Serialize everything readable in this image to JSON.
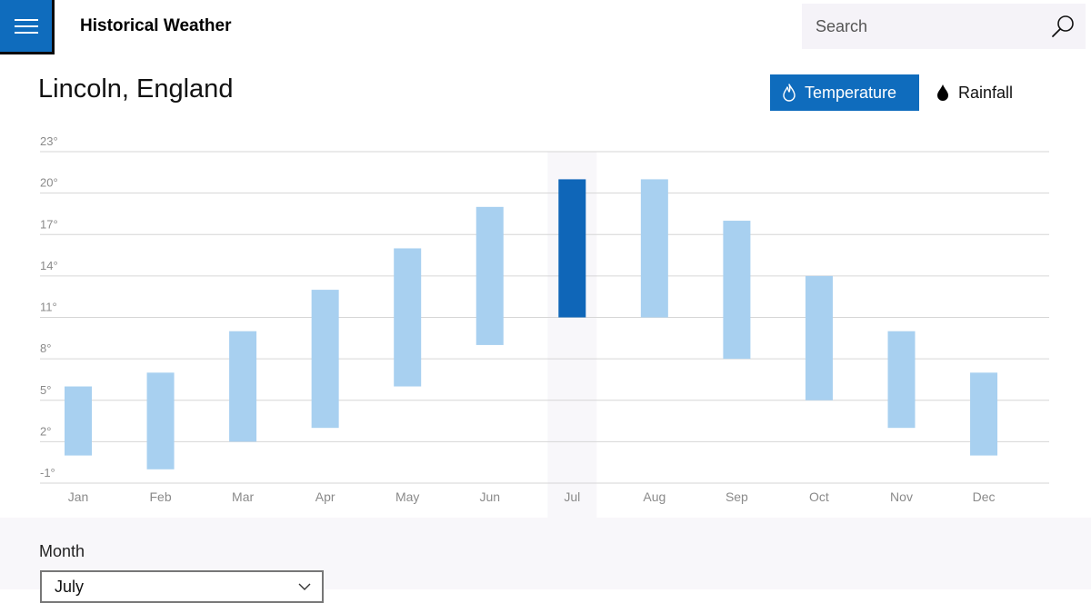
{
  "header": {
    "menu_icon": "hamburger-icon",
    "title": "Historical Weather",
    "search_placeholder": "Search",
    "search_icon": "search-icon"
  },
  "location": "Lincoln, England",
  "toggles": {
    "temperature_label": "Temperature",
    "rainfall_label": "Rainfall",
    "active": "temperature"
  },
  "month_picker": {
    "label": "Month",
    "selected": "July"
  },
  "colors": {
    "accent": "#0f6cbd",
    "bar": "#a8d0f0",
    "bar_selected": "#0f66b8",
    "highlight_band": "#f8f7fa"
  },
  "chart_data": {
    "type": "bar",
    "subtype": "range",
    "categories": [
      "Jan",
      "Feb",
      "Mar",
      "Apr",
      "May",
      "Jun",
      "Jul",
      "Aug",
      "Sep",
      "Oct",
      "Nov",
      "Dec"
    ],
    "series": [
      {
        "low": [
          1,
          0,
          2,
          3,
          6,
          9,
          11,
          11,
          8,
          5,
          3,
          1
        ],
        "high": [
          6,
          7,
          10,
          13,
          16,
          19,
          21,
          21,
          18,
          14,
          10,
          7
        ]
      }
    ],
    "selected_category": "Jul",
    "y_ticks": [
      "23°",
      "20°",
      "17°",
      "14°",
      "11°",
      "8°",
      "5°",
      "2°",
      "-1°"
    ],
    "y_tick_values": [
      23,
      20,
      17,
      14,
      11,
      8,
      5,
      2,
      -1
    ],
    "ylim": [
      -1,
      23
    ],
    "grid": true
  }
}
